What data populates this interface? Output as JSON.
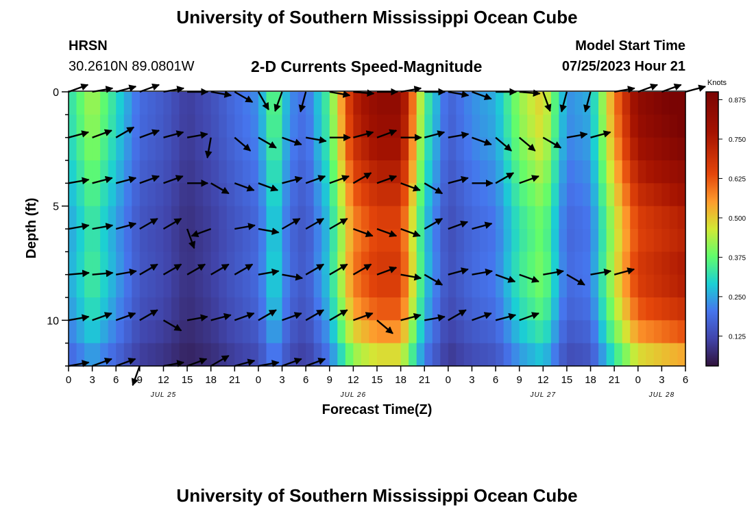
{
  "header": {
    "title": "University of Southern Mississippi Ocean Cube",
    "station": "HRSN",
    "coordinates": "30.2610N  89.0801W",
    "product": "2-D Currents Speed-Magnitude",
    "model_start_label": "Model Start Time",
    "model_start_value": "07/25/2023 Hour 21"
  },
  "footer": {
    "title": "University of Southern Mississippi Ocean Cube"
  },
  "chart_data": {
    "type": "heatmap",
    "title": "2-D Currents Speed-Magnitude",
    "xlabel": "Forecast Time(Z)",
    "ylabel": "Depth (ft)",
    "colorbar_label": "Knots",
    "colorbar_ticks": [
      "0.875",
      "0.750",
      "0.625",
      "0.500",
      "0.375",
      "0.250",
      "0.125"
    ],
    "colorbar_range": [
      0.03,
      0.9
    ],
    "x_range_hours": [
      0,
      78
    ],
    "y_range_ft": [
      0,
      12
    ],
    "x_tick_labels": [
      "0",
      "3",
      "6",
      "9",
      "12",
      "15",
      "18",
      "21",
      "0",
      "3",
      "6",
      "9",
      "12",
      "15",
      "18",
      "21",
      "0",
      "3",
      "6",
      "9",
      "12",
      "15",
      "18",
      "21",
      "0",
      "3",
      "6"
    ],
    "y_tick_labels": [
      "0",
      "5",
      "10"
    ],
    "y_tick_values": [
      0,
      5,
      10
    ],
    "date_labels": [
      {
        "text": "JUL 25",
        "hour": 12
      },
      {
        "text": "JUL 26",
        "hour": 36
      },
      {
        "text": "JUL 27",
        "hour": 60
      },
      {
        "text": "JUL 28",
        "hour": 75
      }
    ],
    "speed_profile_by_hour": [
      {
        "h": 0,
        "v": 0.3
      },
      {
        "h": 3,
        "v": 0.42
      },
      {
        "h": 6,
        "v": 0.3
      },
      {
        "h": 9,
        "v": 0.18
      },
      {
        "h": 12,
        "v": 0.15
      },
      {
        "h": 15,
        "v": 0.1
      },
      {
        "h": 18,
        "v": 0.13
      },
      {
        "h": 21,
        "v": 0.18
      },
      {
        "h": 24,
        "v": 0.22
      },
      {
        "h": 26,
        "v": 0.38
      },
      {
        "h": 28,
        "v": 0.22
      },
      {
        "h": 30,
        "v": 0.18
      },
      {
        "h": 33,
        "v": 0.35
      },
      {
        "h": 36,
        "v": 0.7
      },
      {
        "h": 39,
        "v": 0.8
      },
      {
        "h": 42,
        "v": 0.8
      },
      {
        "h": 45,
        "v": 0.35
      },
      {
        "h": 48,
        "v": 0.16
      },
      {
        "h": 51,
        "v": 0.22
      },
      {
        "h": 54,
        "v": 0.25
      },
      {
        "h": 57,
        "v": 0.4
      },
      {
        "h": 60,
        "v": 0.48
      },
      {
        "h": 63,
        "v": 0.22
      },
      {
        "h": 66,
        "v": 0.25
      },
      {
        "h": 69,
        "v": 0.55
      },
      {
        "h": 72,
        "v": 0.8
      },
      {
        "h": 75,
        "v": 0.85
      },
      {
        "h": 78,
        "v": 0.9
      }
    ],
    "depth_modifier": [
      {
        "d": 0,
        "f": 1.05
      },
      {
        "d": 2,
        "f": 1.0
      },
      {
        "d": 4,
        "f": 0.9
      },
      {
        "d": 6,
        "f": 0.8
      },
      {
        "d": 8,
        "f": 0.85
      },
      {
        "d": 10,
        "f": 0.75
      },
      {
        "d": 12,
        "f": 0.55
      }
    ],
    "vector_depths_ft": [
      0,
      2,
      4,
      6,
      8,
      10,
      12
    ],
    "vector_hours": [
      0,
      3,
      6,
      9,
      12,
      15,
      18,
      21,
      24,
      27,
      30,
      33,
      36,
      39,
      42,
      45,
      48,
      51,
      54,
      57,
      60,
      63,
      66,
      69,
      72,
      75,
      78
    ],
    "vector_directions_deg": [
      [
        70,
        80,
        75,
        70,
        80,
        90,
        100,
        120,
        150,
        200,
        195,
        100,
        95,
        90,
        80,
        90,
        100,
        110,
        90,
        95,
        160,
        195,
        195,
        80,
        70,
        70,
        75
      ],
      [
        75,
        70,
        60,
        70,
        75,
        80,
        190,
        130,
        120,
        110,
        100,
        90,
        75,
        70,
        90,
        75,
        80,
        110,
        130,
        130,
        120,
        80,
        75
      ],
      [
        80,
        75,
        75,
        70,
        70,
        90,
        120,
        110,
        110,
        75,
        70,
        70,
        60,
        70,
        110,
        120,
        75,
        90,
        60,
        70
      ],
      [
        80,
        80,
        75,
        60,
        60,
        160,
        250,
        80,
        100,
        60,
        60,
        60,
        110,
        110,
        110,
        60,
        70,
        75
      ],
      [
        85,
        85,
        80,
        60,
        60,
        60,
        60,
        60,
        80,
        100,
        60,
        60,
        60,
        70,
        100,
        120,
        75,
        80,
        110,
        110,
        80,
        120,
        80,
        75
      ],
      [
        80,
        70,
        70,
        60,
        120,
        80,
        75,
        70,
        60,
        70,
        60,
        60,
        70,
        130,
        75,
        80,
        60,
        70,
        75,
        70
      ],
      [
        80,
        70,
        70,
        200,
        80,
        70,
        60,
        75,
        80,
        70,
        70
      ]
    ]
  }
}
